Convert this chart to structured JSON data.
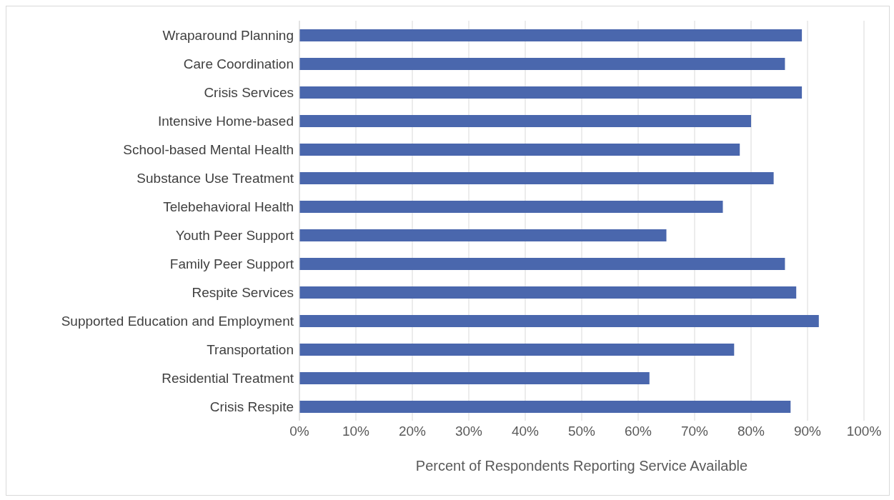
{
  "chart_data": {
    "type": "bar",
    "orientation": "horizontal",
    "xlabel": "Percent of Respondents Reporting Service Available",
    "categories": [
      "Wraparound Planning",
      "Care Coordination",
      "Crisis Services",
      "Intensive Home-based",
      "School-based Mental Health",
      "Substance Use Treatment",
      "Telebehavioral Health",
      "Youth Peer Support",
      "Family Peer Support",
      "Respite Services",
      "Supported Education and Employment",
      "Transportation",
      "Residential Treatment",
      "Crisis Respite"
    ],
    "values": [
      89,
      86,
      89,
      80,
      78,
      84,
      75,
      65,
      86,
      88,
      92,
      77,
      62,
      87
    ],
    "color": "#4a67ad",
    "xlim": [
      0,
      100
    ],
    "xticks": [
      {
        "value": 0,
        "label": "0%"
      },
      {
        "value": 10,
        "label": "10%"
      },
      {
        "value": 20,
        "label": "20%"
      },
      {
        "value": 30,
        "label": "30%"
      },
      {
        "value": 40,
        "label": "40%"
      },
      {
        "value": 50,
        "label": "50%"
      },
      {
        "value": 60,
        "label": "60%"
      },
      {
        "value": 70,
        "label": "70%"
      },
      {
        "value": 80,
        "label": "80%"
      },
      {
        "value": 90,
        "label": "90%"
      },
      {
        "value": 100,
        "label": "100%"
      }
    ],
    "grid": "x"
  }
}
